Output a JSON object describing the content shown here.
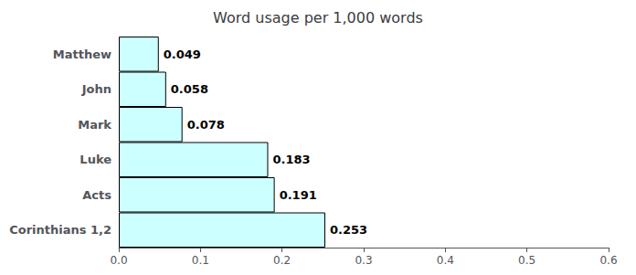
{
  "chart_data": {
    "type": "bar",
    "orientation": "horizontal",
    "title": "Word usage per 1,000 words",
    "categories": [
      "Matthew",
      "John",
      "Mark",
      "Luke",
      "Acts",
      "Corinthians 1,2"
    ],
    "values": [
      0.049,
      0.058,
      0.078,
      0.183,
      0.191,
      0.253
    ],
    "color": "#ccffff",
    "xlim": [
      0.0,
      0.6
    ],
    "xticks": [
      {
        "value": 0,
        "label": "0.0"
      },
      0.1,
      0.2,
      0.3,
      0.4,
      0.5,
      0.6
    ],
    "grid": false,
    "data_labels": true
  }
}
